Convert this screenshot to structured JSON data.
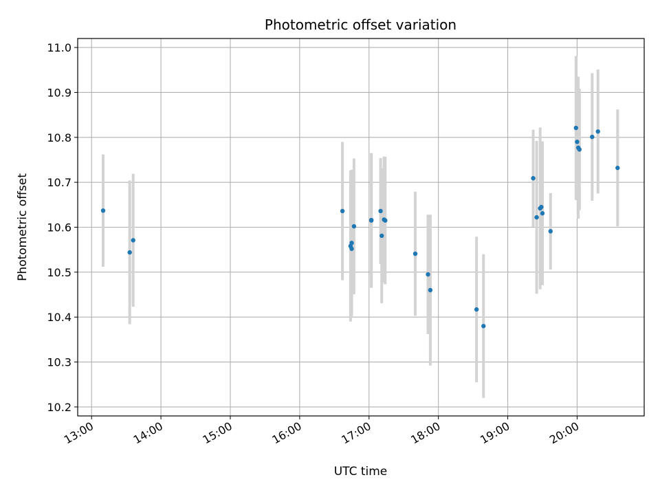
{
  "chart_data": {
    "type": "scatter",
    "title": "Photometric offset variation",
    "xlabel": "UTC time",
    "ylabel": "Photometric offset",
    "x_ticks": [
      "13:00",
      "14:00",
      "15:00",
      "16:00",
      "17:00",
      "18:00",
      "19:00",
      "20:00"
    ],
    "y_ticks": [
      "10.2",
      "10.3",
      "10.4",
      "10.5",
      "10.6",
      "10.7",
      "10.8",
      "10.9",
      "11.0"
    ],
    "xlim": [
      "12:48",
      "20:58"
    ],
    "ylim": [
      10.18,
      11.02
    ],
    "grid": true,
    "series": [
      {
        "color": "#1f77b4",
        "errorbar_color": "#d3d3d3",
        "points": [
          {
            "x": "13:10",
            "y": 10.637,
            "err": 0.125
          },
          {
            "x": "13:33",
            "y": 10.544,
            "err": 0.16
          },
          {
            "x": "13:36",
            "y": 10.571,
            "err": 0.148
          },
          {
            "x": "16:37",
            "y": 10.636,
            "err": 0.154
          },
          {
            "x": "16:44",
            "y": 10.558,
            "err": 0.168
          },
          {
            "x": "16:45",
            "y": 10.565,
            "err": 0.163
          },
          {
            "x": "16:45",
            "y": 10.552,
            "err": 0.14
          },
          {
            "x": "16:47",
            "y": 10.602,
            "err": 0.151
          },
          {
            "x": "17:02",
            "y": 10.615,
            "err": 0.15
          },
          {
            "x": "17:02",
            "y": 10.616,
            "err": 0.148
          },
          {
            "x": "17:10",
            "y": 10.636,
            "err": 0.118
          },
          {
            "x": "17:11",
            "y": 10.581,
            "err": 0.15
          },
          {
            "x": "17:13",
            "y": 10.617,
            "err": 0.14
          },
          {
            "x": "17:14",
            "y": 10.615,
            "err": 0.142
          },
          {
            "x": "17:40",
            "y": 10.541,
            "err": 0.138
          },
          {
            "x": "17:51",
            "y": 10.495,
            "err": 0.133
          },
          {
            "x": "17:53",
            "y": 10.46,
            "err": 0.168
          },
          {
            "x": "18:33",
            "y": 10.417,
            "err": 0.162
          },
          {
            "x": "18:39",
            "y": 10.38,
            "err": 0.16
          },
          {
            "x": "19:22",
            "y": 10.709,
            "err": 0.108
          },
          {
            "x": "19:25",
            "y": 10.622,
            "err": 0.17
          },
          {
            "x": "19:28",
            "y": 10.642,
            "err": 0.18
          },
          {
            "x": "19:29",
            "y": 10.645,
            "err": 0.145
          },
          {
            "x": "19:30",
            "y": 10.631,
            "err": 0.16
          },
          {
            "x": "19:37",
            "y": 10.591,
            "err": 0.085
          },
          {
            "x": "19:59",
            "y": 10.821,
            "err": 0.16
          },
          {
            "x": "20:00",
            "y": 10.79,
            "err": 0.13
          },
          {
            "x": "20:01",
            "y": 10.777,
            "err": 0.158
          },
          {
            "x": "20:02",
            "y": 10.773,
            "err": 0.135
          },
          {
            "x": "20:13",
            "y": 10.801,
            "err": 0.142
          },
          {
            "x": "20:18",
            "y": 10.813,
            "err": 0.138
          },
          {
            "x": "20:35",
            "y": 10.732,
            "err": 0.13
          }
        ]
      }
    ]
  }
}
